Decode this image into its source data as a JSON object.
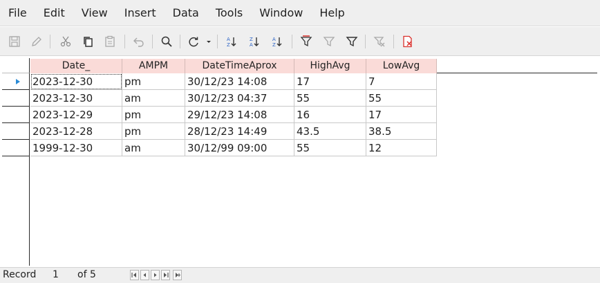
{
  "menu": [
    "File",
    "Edit",
    "View",
    "Insert",
    "Data",
    "Tools",
    "Window",
    "Help"
  ],
  "toolbar": {
    "icons": [
      "save-icon",
      "edit-icon",
      "cut-icon",
      "copy-icon",
      "paste-icon",
      "undo-icon",
      "find-icon",
      "refresh-icon",
      "sort-ascending-icon",
      "sort-descending-icon",
      "sort-icon",
      "autofilter-icon",
      "standard-filter-icon",
      "filter-icon",
      "remove-filter-icon",
      "delete-record-icon"
    ],
    "accent_color": "#d9302c"
  },
  "table": {
    "columns": [
      "Date_",
      "AMPM",
      "DateTimeAprox",
      "HighAvg",
      "LowAvg"
    ],
    "rows": [
      [
        "2023-12-30",
        "pm",
        "30/12/23 14:08",
        "17",
        "7"
      ],
      [
        "2023-12-30",
        "am",
        "30/12/23 04:37",
        "55",
        "55"
      ],
      [
        "2023-12-29",
        "pm",
        "29/12/23 14:08",
        "16",
        "17"
      ],
      [
        "2023-12-28",
        "pm",
        "28/12/23 14:49",
        "43.5",
        "38.5"
      ],
      [
        "1999-12-30",
        "am",
        "30/12/99 09:00",
        "55",
        "12"
      ]
    ],
    "header_color": "#fadbd8"
  },
  "navigation": {
    "record_label": "Record",
    "current_record": "1",
    "of_label": "of 5"
  }
}
